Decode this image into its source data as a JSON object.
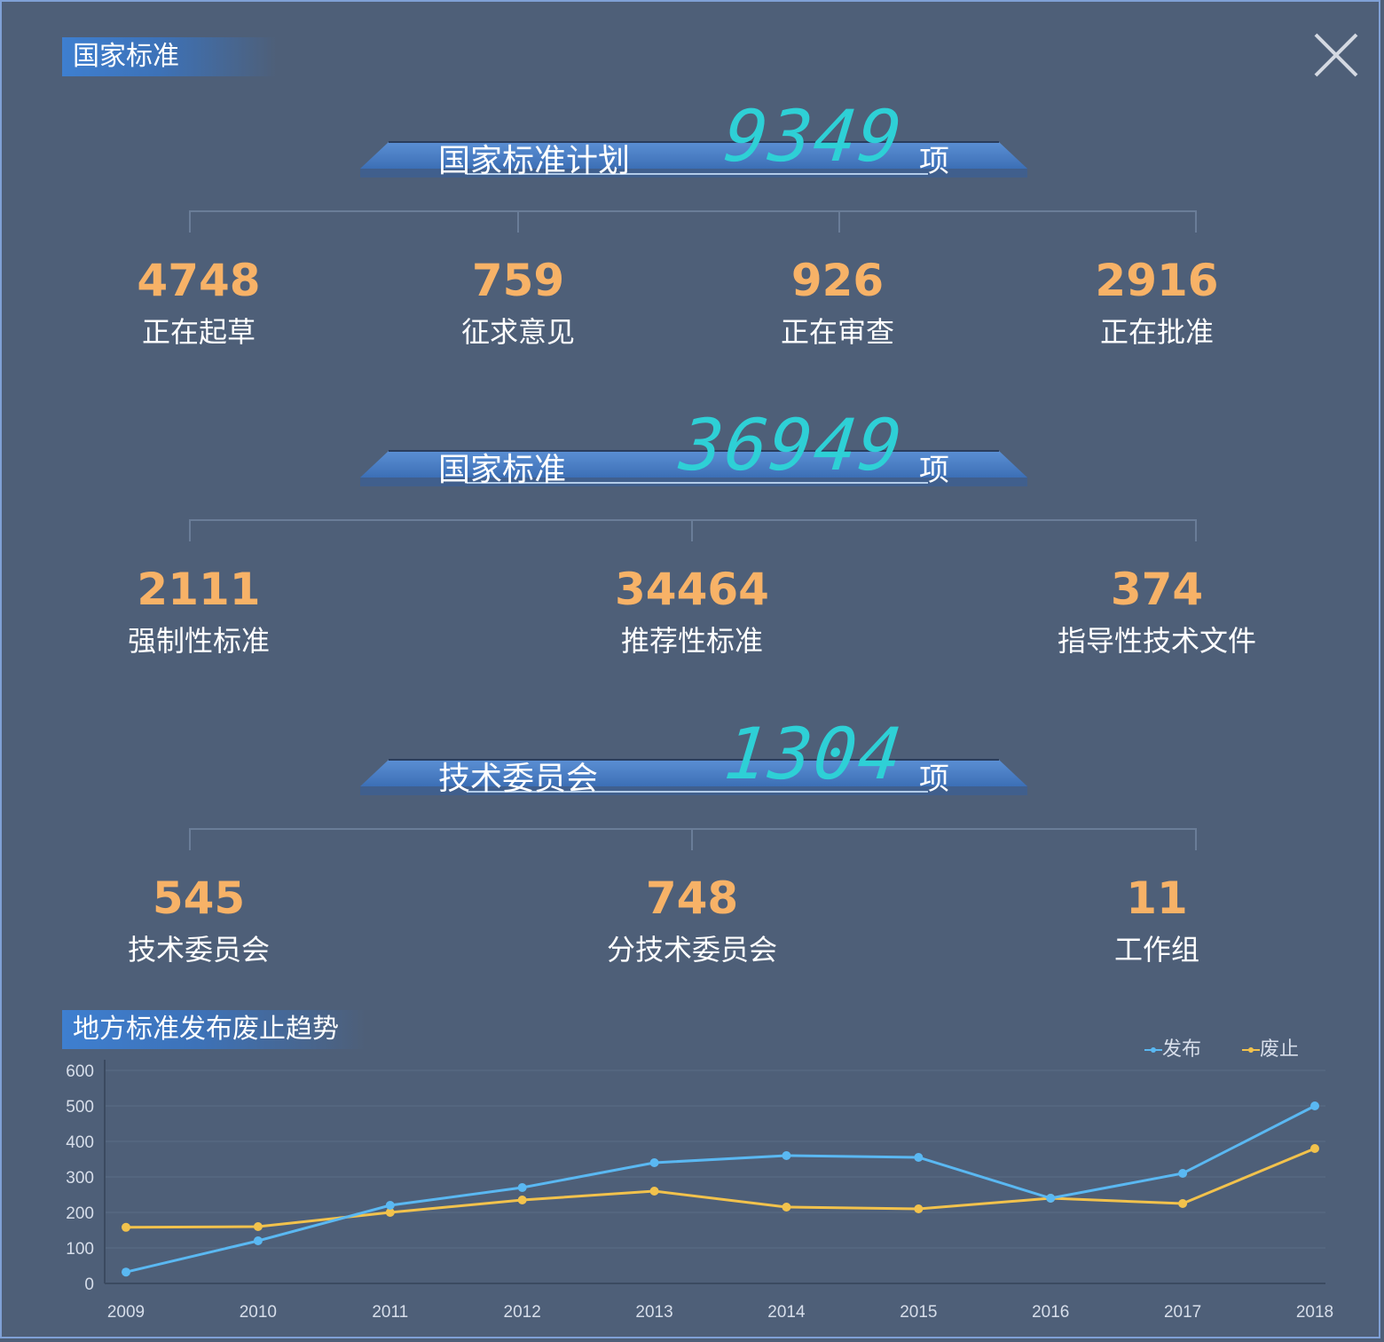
{
  "header": {
    "title": "国家标准"
  },
  "heroes": [
    {
      "label": "国家标准计划",
      "value": "9349",
      "unit": "项"
    },
    {
      "label": "国家标准",
      "value": "36949",
      "unit": "项"
    },
    {
      "label": "技术委员会",
      "value": "1304",
      "unit": "项"
    }
  ],
  "plan_stats": [
    {
      "value": "4748",
      "label": "正在起草"
    },
    {
      "value": "759",
      "label": "征求意见"
    },
    {
      "value": "926",
      "label": "正在审查"
    },
    {
      "value": "2916",
      "label": "正在批准"
    }
  ],
  "standard_stats": [
    {
      "value": "2111",
      "label": "强制性标准"
    },
    {
      "value": "34464",
      "label": "推荐性标准"
    },
    {
      "value": "374",
      "label": "指导性技术文件"
    }
  ],
  "committee_stats": [
    {
      "value": "545",
      "label": "技术委员会"
    },
    {
      "value": "748",
      "label": "分技术委员会"
    },
    {
      "value": "11",
      "label": "工作组"
    }
  ],
  "trend": {
    "title": "地方标准发布废止趋势"
  },
  "colors": {
    "accent_number": "#f7b267",
    "hero_number": "#2ed0d6",
    "series_publish": "#5ab8f2",
    "series_abolish": "#f2c24c"
  },
  "chart_data": {
    "type": "line",
    "x": [
      "2009",
      "2010",
      "2011",
      "2012",
      "2013",
      "2014",
      "2015",
      "2016",
      "2017",
      "2018"
    ],
    "ylim": [
      0,
      600
    ],
    "yticks": [
      "0",
      "100",
      "200",
      "300",
      "400",
      "500",
      "600"
    ],
    "series": [
      {
        "name": "发布",
        "color": "#5ab8f2",
        "values": [
          32,
          120,
          220,
          270,
          340,
          360,
          355,
          240,
          310,
          500
        ]
      },
      {
        "name": "废止",
        "color": "#f2c24c",
        "values": [
          158,
          160,
          200,
          235,
          260,
          215,
          210,
          240,
          225,
          380
        ]
      }
    ],
    "legend": "top-right",
    "grid": true
  }
}
